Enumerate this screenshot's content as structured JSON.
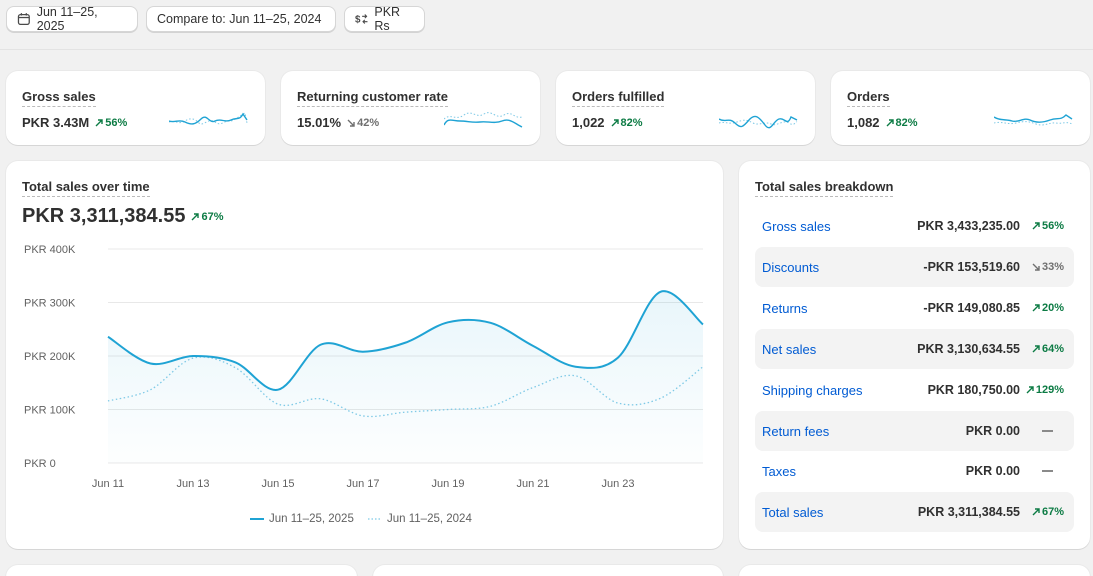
{
  "filters": {
    "date_range": "Jun 11–25, 2025",
    "compare": "Compare to: Jun 11–25, 2024",
    "currency": "PKR Rs"
  },
  "metrics": [
    {
      "title": "Gross sales",
      "value": "PKR 3.43M",
      "change": "56%",
      "direction": "up"
    },
    {
      "title": "Returning customer rate",
      "value": "15.01%",
      "change": "42%",
      "direction": "down"
    },
    {
      "title": "Orders fulfilled",
      "value": "1,022",
      "change": "82%",
      "direction": "up"
    },
    {
      "title": "Orders",
      "value": "1,082",
      "change": "82%",
      "direction": "up"
    }
  ],
  "sales_over_time": {
    "title": "Total sales over time",
    "total": "PKR 3,311,384.55",
    "change": "67%"
  },
  "chart_data": {
    "type": "line",
    "x": [
      "Jun 11",
      "Jun 12",
      "Jun 13",
      "Jun 14",
      "Jun 15",
      "Jun 16",
      "Jun 17",
      "Jun 18",
      "Jun 19",
      "Jun 20",
      "Jun 21",
      "Jun 22",
      "Jun 23",
      "Jun 24",
      "Jun 25"
    ],
    "xticks": [
      "Jun 11",
      "Jun 13",
      "Jun 15",
      "Jun 17",
      "Jun 19",
      "Jun 21",
      "Jun 23"
    ],
    "yticks": [
      "PKR 0",
      "PKR 100K",
      "PKR 200K",
      "PKR 300K",
      "PKR 400K"
    ],
    "ylim": [
      0,
      400000
    ],
    "series": [
      {
        "name": "Jun 11–25, 2025",
        "color": "#1fa3d4",
        "style": "solid",
        "values": [
          236000,
          186000,
          200000,
          188000,
          137000,
          221000,
          208000,
          225000,
          263000,
          262000,
          219000,
          180000,
          197000,
          320000,
          259000
        ]
      },
      {
        "name": "Jun 11–25, 2024",
        "color": "#7ec9e6",
        "style": "dotted",
        "values": [
          116000,
          137000,
          196000,
          178000,
          110000,
          120000,
          88000,
          95000,
          100000,
          106000,
          141000,
          163000,
          112000,
          121000,
          180000
        ]
      }
    ],
    "grid": true,
    "legend": "bottom"
  },
  "breakdown": {
    "title": "Total sales breakdown",
    "rows": [
      {
        "label": "Gross sales",
        "value": "PKR 3,433,235.00",
        "change": "56%",
        "direction": "up"
      },
      {
        "label": "Discounts",
        "value": "-PKR 153,519.60",
        "change": "33%",
        "direction": "down"
      },
      {
        "label": "Returns",
        "value": "-PKR 149,080.85",
        "change": "20%",
        "direction": "up"
      },
      {
        "label": "Net sales",
        "value": "PKR 3,130,634.55",
        "change": "64%",
        "direction": "up"
      },
      {
        "label": "Shipping charges",
        "value": "PKR 180,750.00",
        "change": "129%",
        "direction": "up"
      },
      {
        "label": "Return fees",
        "value": "PKR 0.00",
        "change": "",
        "direction": "none"
      },
      {
        "label": "Taxes",
        "value": "PKR 0.00",
        "change": "",
        "direction": "none"
      },
      {
        "label": "Total sales",
        "value": "PKR 3,311,384.55",
        "change": "67%",
        "direction": "up"
      }
    ]
  }
}
